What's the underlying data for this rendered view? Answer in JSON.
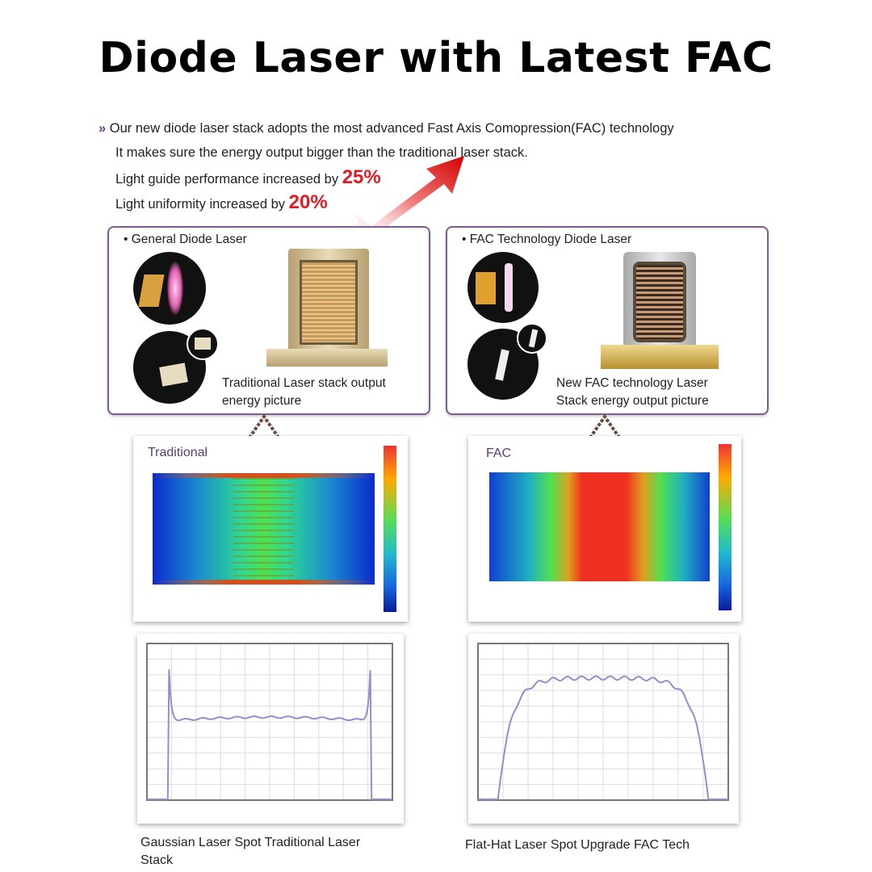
{
  "title": "Diode Laser with Latest FAC",
  "intro": {
    "bullet": "»",
    "line1": "Our new diode laser stack adopts the most advanced Fast Axis Comopression(FAC) technology",
    "line2": "It makes sure the energy output bigger than the traditional laser stack.",
    "line3": "Light guide performance increased by",
    "line3_value": "25%",
    "line4": "Light uniformity increased by",
    "line4_value": "20%"
  },
  "left": {
    "box_label": "• General Diode Laser",
    "caption_line1": "Traditional Laser stack output",
    "caption_line2": "energy picture",
    "heatmap_label": "Traditional",
    "plot_caption_line1": "Gaussian Laser Spot Traditional Laser",
    "plot_caption_line2": "Stack"
  },
  "right": {
    "box_label": "• FAC Technology Diode Laser",
    "caption_line1": "New FAC technology Laser",
    "caption_line2": "Stack energy output picture",
    "heatmap_label": "FAC",
    "plot_caption_line1": "Flat-Hat Laser Spot Upgrade FAC Tech"
  },
  "colors": {
    "accent": "#e01b24",
    "frame": "#7d5c8f",
    "heat_label": "#5a3d7a",
    "profile_line": "#8f8fd0"
  }
}
